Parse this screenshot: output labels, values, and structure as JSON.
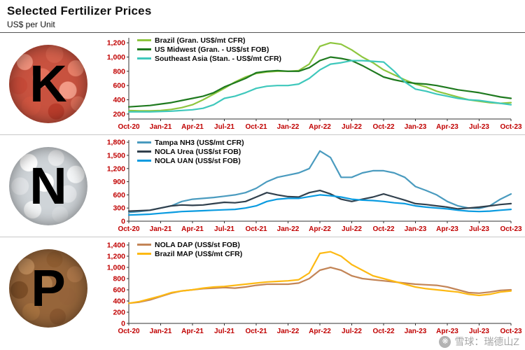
{
  "header": {
    "title": "Selected Fertilizer Prices",
    "subtitle": "US$ per Unit"
  },
  "panels": [
    {
      "letter": "K"
    },
    {
      "letter": "N"
    },
    {
      "letter": "P"
    }
  ],
  "watermark": {
    "text": "雪球：瑞德山Z",
    "logo": "xueqiu-snowball-logo"
  },
  "colors": {
    "axis_labels": "#c00000",
    "axis_line": "#333333"
  },
  "chart_data": [
    {
      "type": "line",
      "panel": "K",
      "title": "",
      "xlabel": "",
      "ylabel": "",
      "grid": false,
      "legend_position": "top-left",
      "ylim": [
        130,
        1270
      ],
      "yticks": [
        200,
        400,
        600,
        800,
        1000,
        1200
      ],
      "x_tick_labels": [
        "Oct-20",
        "Jan-21",
        "Apr-21",
        "Jul-21",
        "Oct-21",
        "Jan-22",
        "Apr-22",
        "Jul-22",
        "Oct-22",
        "Jan-23",
        "Apr-23",
        "Jul-23",
        "Oct-23"
      ],
      "months": 37,
      "series": [
        {
          "name": "Brazil (Gran. US$/mt CFR)",
          "color": "#8ec63f",
          "values": [
            250,
            245,
            245,
            250,
            265,
            290,
            330,
            400,
            480,
            560,
            650,
            720,
            770,
            790,
            800,
            800,
            810,
            900,
            1150,
            1200,
            1180,
            1100,
            1000,
            920,
            820,
            750,
            680,
            620,
            580,
            520,
            480,
            440,
            400,
            380,
            360,
            350,
            360
          ]
        },
        {
          "name": "US Midwest (Gran. - US$/st FOB)",
          "color": "#1f7a1f",
          "values": [
            300,
            310,
            320,
            340,
            360,
            390,
            420,
            450,
            500,
            580,
            640,
            700,
            780,
            800,
            810,
            800,
            800,
            850,
            950,
            1000,
            980,
            950,
            880,
            800,
            720,
            680,
            650,
            630,
            620,
            600,
            570,
            540,
            520,
            500,
            470,
            440,
            420
          ]
        },
        {
          "name": "Southeast Asia (Stan. - US$/mt CFR)",
          "color": "#3fc8bc",
          "values": [
            230,
            230,
            230,
            235,
            240,
            250,
            260,
            280,
            330,
            420,
            450,
            500,
            560,
            590,
            600,
            600,
            620,
            700,
            820,
            900,
            920,
            950,
            950,
            940,
            930,
            800,
            650,
            550,
            520,
            480,
            450,
            420,
            400,
            390,
            370,
            350,
            330
          ]
        }
      ]
    },
    {
      "type": "line",
      "panel": "N",
      "title": "",
      "xlabel": "",
      "ylabel": "",
      "grid": false,
      "legend_position": "top-left",
      "ylim": [
        0,
        1850
      ],
      "yticks": [
        0,
        300,
        600,
        900,
        1200,
        1500,
        1800
      ],
      "x_tick_labels": [
        "Oct-20",
        "Jan-21",
        "Apr-21",
        "Jul-21",
        "Oct-21",
        "Jan-22",
        "Apr-22",
        "Jul-22",
        "Oct-22",
        "Jan-23",
        "Apr-23",
        "Jul-23",
        "Oct-23"
      ],
      "months": 37,
      "series": [
        {
          "name": "Tampa NH3 (US$/mt CFR)",
          "color": "#4a9bbf",
          "values": [
            200,
            220,
            250,
            300,
            350,
            450,
            500,
            520,
            540,
            570,
            600,
            650,
            750,
            900,
            1000,
            1050,
            1100,
            1200,
            1600,
            1450,
            1000,
            1000,
            1100,
            1150,
            1150,
            1100,
            1000,
            790,
            700,
            600,
            450,
            350,
            300,
            290,
            350,
            500,
            620
          ]
        },
        {
          "name": "NOLA Urea (US$/st FOB)",
          "color": "#31404d",
          "values": [
            230,
            240,
            250,
            300,
            350,
            370,
            360,
            370,
            400,
            430,
            420,
            450,
            550,
            650,
            600,
            560,
            550,
            650,
            700,
            620,
            500,
            450,
            500,
            550,
            620,
            550,
            480,
            400,
            380,
            350,
            320,
            280,
            300,
            320,
            350,
            380,
            400
          ]
        },
        {
          "name": "NOLA UAN (US$/st FOB)",
          "color": "#0a9be0",
          "values": [
            140,
            150,
            160,
            180,
            200,
            220,
            230,
            240,
            250,
            260,
            270,
            300,
            350,
            450,
            500,
            520,
            520,
            560,
            600,
            580,
            550,
            500,
            480,
            470,
            450,
            420,
            400,
            350,
            320,
            300,
            280,
            250,
            230,
            220,
            230,
            250,
            270
          ]
        }
      ]
    },
    {
      "type": "line",
      "panel": "P",
      "title": "",
      "xlabel": "",
      "ylabel": "",
      "grid": false,
      "legend_position": "top-left",
      "ylim": [
        0,
        1450
      ],
      "yticks": [
        0,
        200,
        400,
        600,
        800,
        1000,
        1200,
        1400
      ],
      "x_tick_labels": [
        "Oct-20",
        "Jan-21",
        "Apr-21",
        "Jul-21",
        "Oct-21",
        "Jan-22",
        "Apr-22",
        "Jul-22",
        "Oct-22",
        "Jan-23",
        "Apr-23",
        "Jul-23",
        "Oct-23"
      ],
      "months": 37,
      "series": [
        {
          "name": "NOLA DAP (US$/st FOB)",
          "color": "#c38557",
          "values": [
            360,
            380,
            420,
            480,
            540,
            580,
            600,
            620,
            630,
            640,
            630,
            650,
            680,
            700,
            700,
            700,
            720,
            800,
            950,
            1000,
            950,
            850,
            800,
            780,
            760,
            740,
            720,
            700,
            690,
            680,
            650,
            600,
            550,
            540,
            560,
            590,
            600
          ]
        },
        {
          "name": "Brazil MAP (US$/mt CFR)",
          "color": "#fdb913",
          "values": [
            360,
            390,
            440,
            490,
            550,
            580,
            600,
            630,
            650,
            660,
            680,
            700,
            720,
            740,
            750,
            760,
            780,
            900,
            1250,
            1280,
            1200,
            1050,
            950,
            850,
            800,
            750,
            700,
            650,
            620,
            600,
            580,
            560,
            520,
            500,
            520,
            560,
            580
          ]
        }
      ]
    }
  ]
}
